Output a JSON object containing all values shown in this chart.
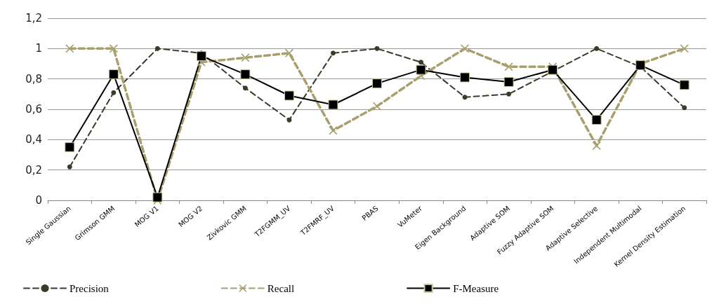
{
  "chart_data": {
    "type": "line",
    "categories": [
      "Single Gaussian",
      "Grimson GMM",
      "MOG V1",
      "MOG V2",
      "Zivkovic GMM",
      "T2FGMM_UV",
      "T2FMRF_UV",
      "PBAS",
      "VuMeter",
      "Eigen Background",
      "Adaptive SOM",
      "Fuzzy Adaptive SOM",
      "Adaptive Selective",
      "Independent Multimodal",
      "Kernel Density Estimation"
    ],
    "series": [
      {
        "name": "Precision",
        "color": "#3d3a2a",
        "marker": "circle",
        "line_style": "dashed",
        "values": [
          0.22,
          0.71,
          1.0,
          0.97,
          0.74,
          0.53,
          0.97,
          1.0,
          0.91,
          0.68,
          0.7,
          0.85,
          1.0,
          0.88,
          0.61
        ]
      },
      {
        "name": "Recall",
        "color": "#a89f6e",
        "marker": "cross",
        "line_style": "dashed",
        "values": [
          1.0,
          1.0,
          0.0,
          0.91,
          0.94,
          0.97,
          0.46,
          0.62,
          0.82,
          1.0,
          0.88,
          0.88,
          0.36,
          0.9,
          1.0
        ]
      },
      {
        "name": "F-Measure",
        "color": "#000000",
        "marker": "square",
        "line_style": "solid",
        "values": [
          0.35,
          0.83,
          0.02,
          0.95,
          0.83,
          0.69,
          0.63,
          0.77,
          0.86,
          0.81,
          0.78,
          0.86,
          0.53,
          0.89,
          0.76
        ]
      }
    ],
    "ylim": [
      0,
      1.2
    ],
    "yticks": [
      0,
      {
        "value": 0.2,
        "label": "0,2"
      },
      {
        "value": 0.4,
        "label": "0,4"
      },
      {
        "value": 0.6,
        "label": "0,6"
      },
      {
        "value": 0.8,
        "label": "0,8"
      },
      1,
      {
        "value": 1.2,
        "label": "1,2"
      }
    ],
    "grid": "y",
    "legend": "bottom"
  }
}
